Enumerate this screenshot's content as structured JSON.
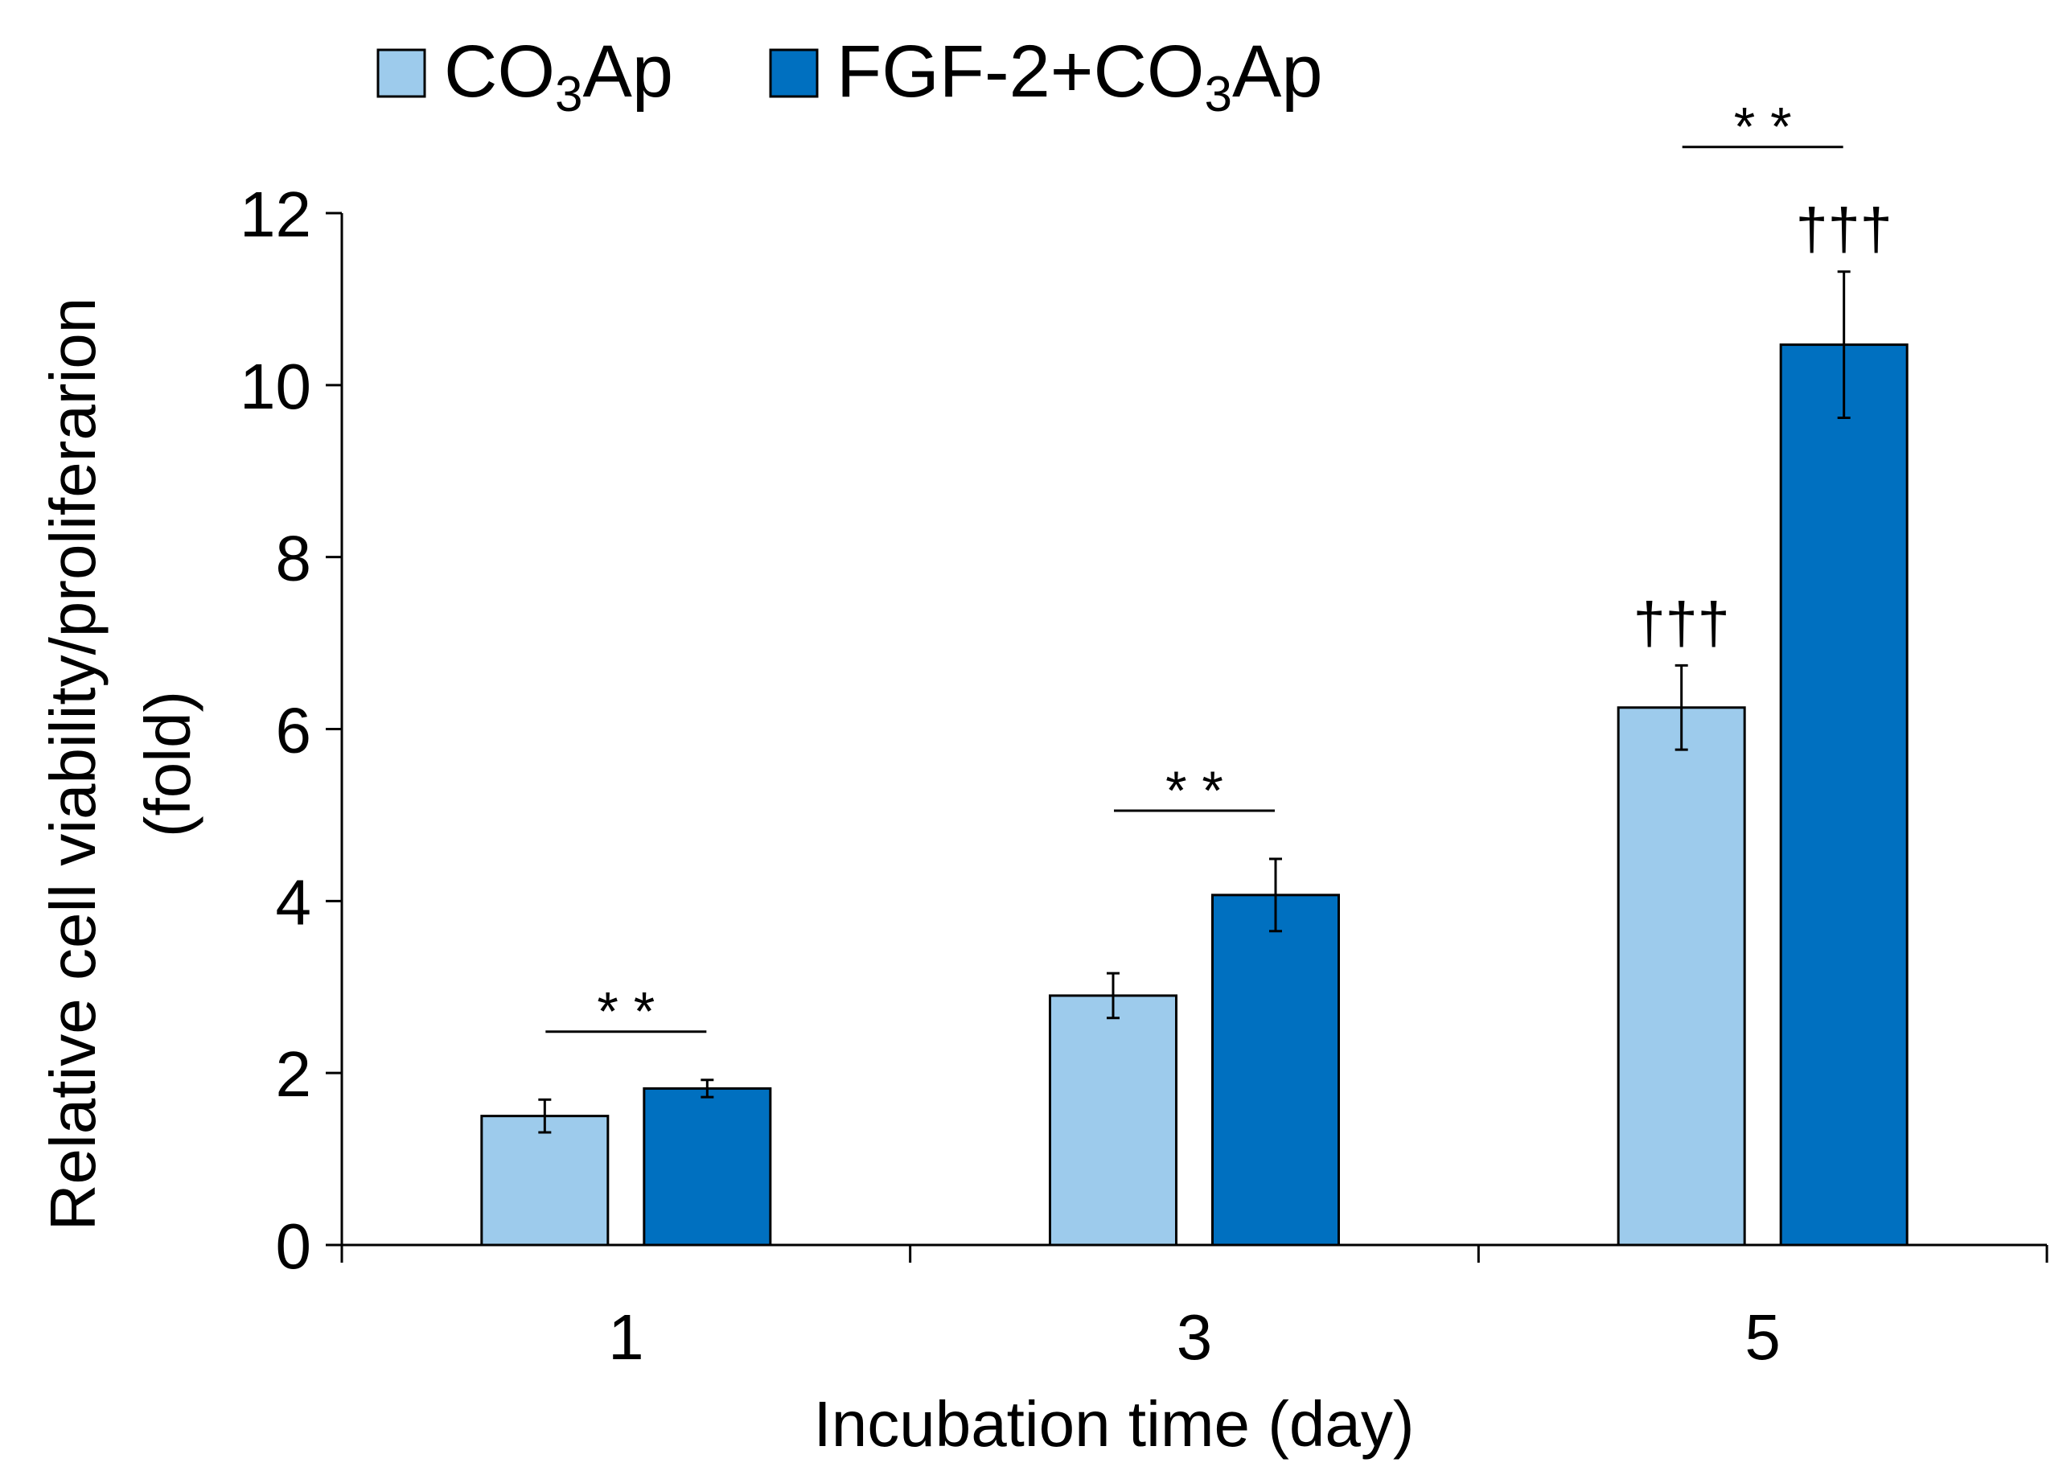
{
  "chart_data": {
    "type": "bar",
    "xlabel": "Incubation time (day)",
    "ylabel_line1": "Relative cell viability/proliferarion",
    "ylabel_line2": "(fold)",
    "ylim": [
      0,
      12
    ],
    "yticks": [
      "0",
      "2",
      "4",
      "6",
      "8",
      "10",
      "12"
    ],
    "categories": [
      "1",
      "3",
      "5"
    ],
    "legend_position": "top",
    "series": [
      {
        "name_main": "CO",
        "name_sub": "3",
        "name_tail": "Ap",
        "color": "#9DCBEC",
        "values": [
          1.5,
          2.9,
          6.25
        ],
        "errors": [
          0.19,
          0.26,
          0.49
        ],
        "annotations": [
          "",
          "",
          "†††"
        ]
      },
      {
        "name_main": "FGF-2+CO",
        "name_sub": "3",
        "name_tail": "Ap",
        "color": "#0070C0",
        "values": [
          1.82,
          4.07,
          10.47
        ],
        "errors": [
          0.1,
          0.42,
          0.85
        ],
        "annotations": [
          "",
          "",
          "†††"
        ]
      }
    ],
    "significance": [
      {
        "category": "1",
        "label": "* *"
      },
      {
        "category": "3",
        "label": "* *"
      },
      {
        "category": "5",
        "label": "* *"
      }
    ]
  }
}
